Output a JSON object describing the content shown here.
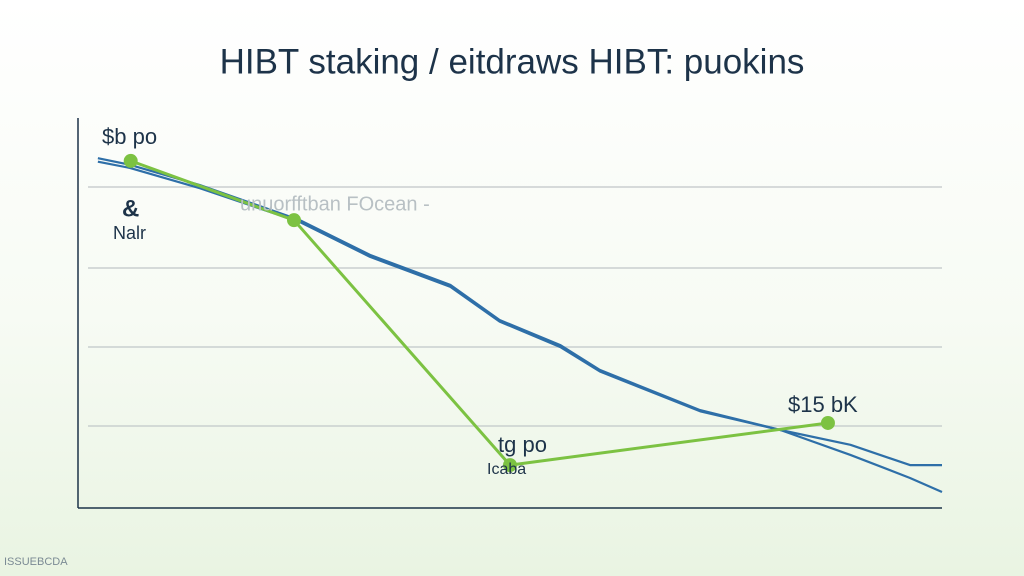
{
  "chart_data": {
    "type": "line",
    "title": "HIBT staking / eitdraws HIBT: puokins",
    "annotations": [
      "$b po",
      "&",
      "Nalr",
      "unuorfftban FOcean -",
      "tg po",
      "Icaba",
      "$15 bK",
      "ISSUEBCDA"
    ],
    "xlim": [
      0,
      100
    ],
    "ylim": [
      0,
      100
    ],
    "series": [
      {
        "color": "#2e6fa8",
        "x": [
          2.3,
          6,
          14.1,
          25.7,
          33.8,
          43.1,
          48.8,
          55.8,
          60.4,
          72,
          81.3,
          89.4,
          96.3,
          100
        ],
        "values": [
          89.7,
          88,
          82.8,
          73.8,
          64.9,
          57.2,
          48.2,
          41.8,
          35.4,
          25.1,
          20,
          16.2,
          11,
          11
        ]
      },
      {
        "color": "#2e6fa8",
        "x": [
          2.3,
          6,
          14.1,
          25.7,
          33.8,
          43.1,
          48.8,
          55.8,
          60.4,
          72,
          81.3,
          89.4,
          96.3,
          100
        ],
        "values": [
          88.8,
          87.2,
          82,
          73.3,
          64.4,
          56.7,
          47.8,
          41.3,
          35,
          24.8,
          20,
          13.6,
          7.7,
          4.1
        ]
      },
      {
        "color": "#7cc242",
        "markers": true,
        "x": [
          6.1,
          25,
          50,
          86.8
        ],
        "values": [
          89,
          73.8,
          11,
          21.8
        ]
      }
    ]
  }
}
